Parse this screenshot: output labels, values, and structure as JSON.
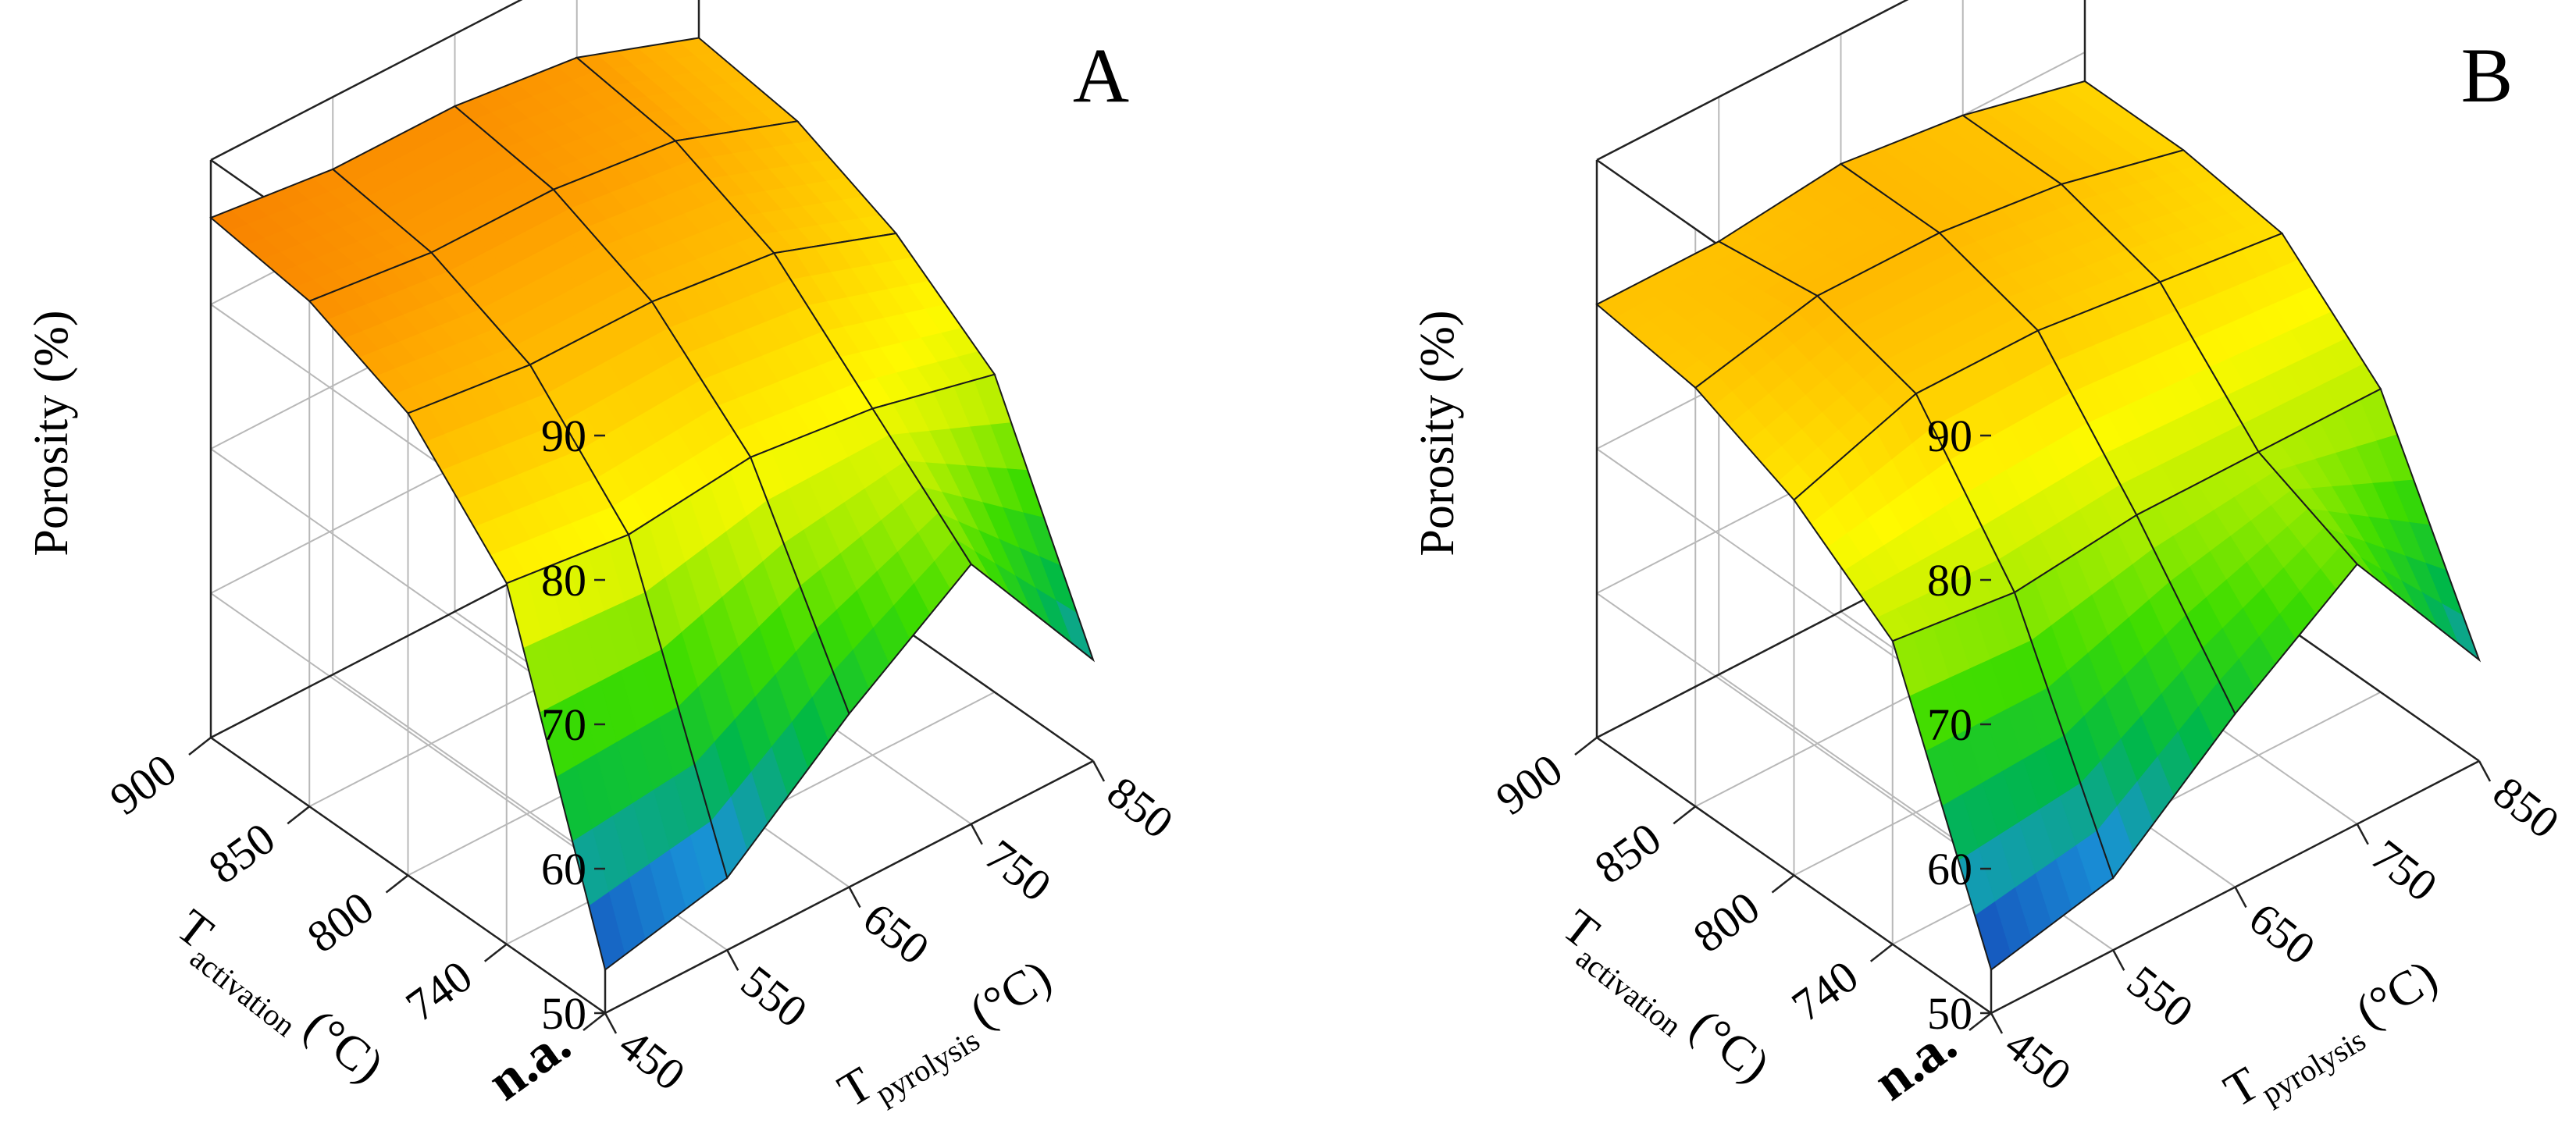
{
  "chart_data": [
    {
      "type": "surface3d",
      "panel_label": "A",
      "zlabel": "Porosity (%)",
      "zlim": [
        50,
        90
      ],
      "z_ticks": [
        "90",
        "80",
        "70",
        "60",
        "50"
      ],
      "activation_axis": {
        "label_main": "T",
        "label_sub": "activation",
        "label_unit": "(°C)",
        "ticks": [
          "n.a.",
          "740",
          "800",
          "850",
          "900"
        ]
      },
      "pyrolysis_axis": {
        "label_main": "T",
        "label_sub": "pyrolysis",
        "label_unit": "(°C)",
        "ticks": [
          "450",
          "550",
          "650",
          "750",
          "850"
        ]
      },
      "x_pyrolysis": [
        450,
        550,
        650,
        750,
        850
      ],
      "y_activation": [
        "n.a.",
        "740",
        "800",
        "850",
        "900"
      ],
      "z": [
        [
          53,
          55,
          62,
          68,
          57
        ],
        [
          75,
          74,
          75,
          74,
          72
        ],
        [
          82,
          81,
          81,
          80,
          77
        ],
        [
          85,
          84,
          84,
          83,
          80
        ],
        [
          86,
          85,
          85,
          84,
          81
        ]
      ]
    },
    {
      "type": "surface3d",
      "panel_label": "B",
      "zlabel": "Porosity (%)",
      "zlim": [
        50,
        90
      ],
      "z_ticks": [
        "90",
        "80",
        "70",
        "60",
        "50"
      ],
      "activation_axis": {
        "label_main": "T",
        "label_sub": "activation",
        "label_unit": "(°C)",
        "ticks": [
          "n.a.",
          "740",
          "800",
          "850",
          "900"
        ]
      },
      "pyrolysis_axis": {
        "label_main": "T",
        "label_sub": "pyrolysis",
        "label_unit": "(°C)",
        "ticks": [
          "450",
          "550",
          "650",
          "750",
          "850"
        ]
      },
      "x_pyrolysis": [
        450,
        550,
        650,
        750,
        850
      ],
      "y_activation": [
        "n.a.",
        "740",
        "800",
        "850",
        "900"
      ],
      "z": [
        [
          53,
          55,
          62,
          68,
          57
        ],
        [
          71,
          70,
          71,
          71,
          71
        ],
        [
          76,
          79,
          79,
          78,
          77
        ],
        [
          79,
          81,
          81,
          80,
          78
        ],
        [
          80,
          80,
          81,
          80,
          78
        ]
      ]
    }
  ]
}
